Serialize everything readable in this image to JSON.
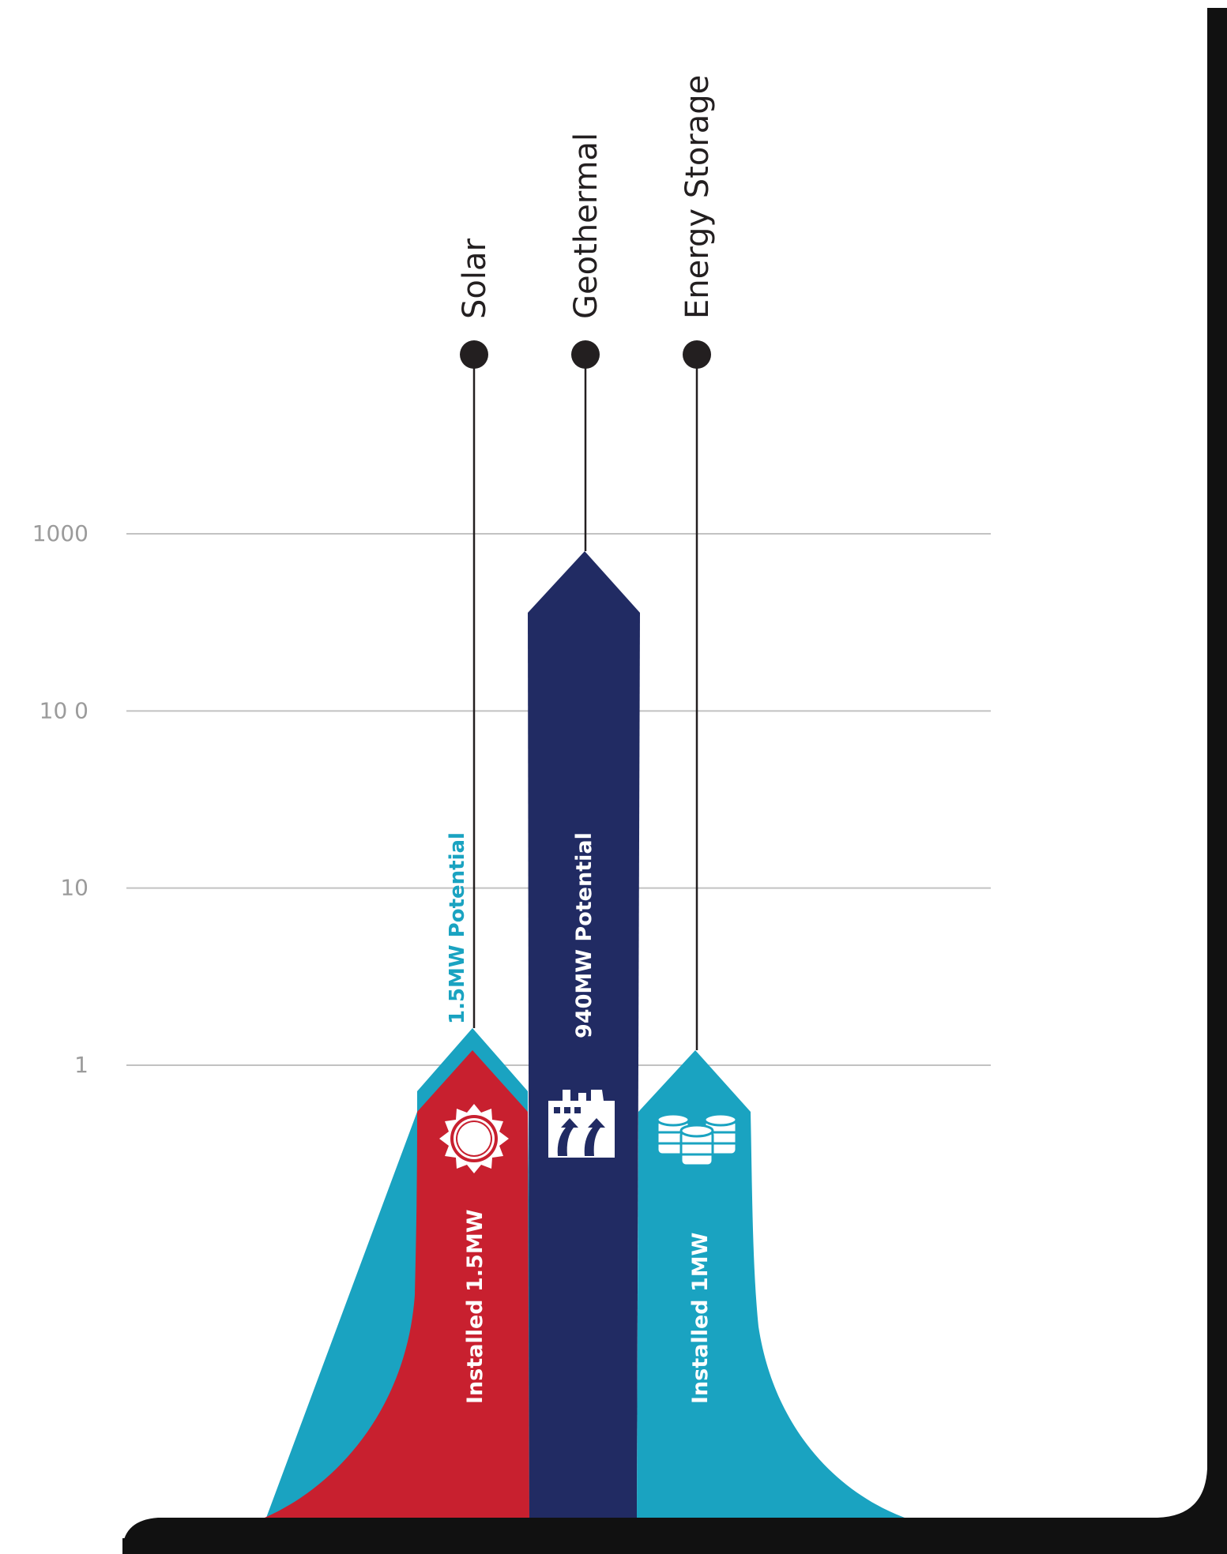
{
  "colors": {
    "solar": "#c8202f",
    "solar_potential": "#1aa3c1",
    "geothermal": "#212b63",
    "storage": "#1aa3c1",
    "grid": "#c2c2c2",
    "marker": "#231f20",
    "frame": "#111111"
  },
  "chart_data": {
    "type": "bar",
    "y_scale": "log",
    "ylim": [
      1,
      1000
    ],
    "yticks": [
      "1",
      "10",
      "10 0",
      "1000"
    ],
    "grid": true,
    "categories": [
      "Solar",
      "Geothermal",
      "Energy Storage"
    ],
    "series": [
      {
        "name": "Installed",
        "values": [
          1.5,
          null,
          1
        ]
      },
      {
        "name": "Potential",
        "values": [
          1.5,
          940,
          null
        ]
      }
    ],
    "labels": {
      "solar_installed": "Installed 1.5MW",
      "solar_potential": "1.5MW Potential",
      "geothermal_potential": "940MW Potential",
      "storage_installed": "Installed 1MW"
    },
    "icons": [
      "sun-icon",
      "factory-icon",
      "barrels-icon"
    ]
  }
}
